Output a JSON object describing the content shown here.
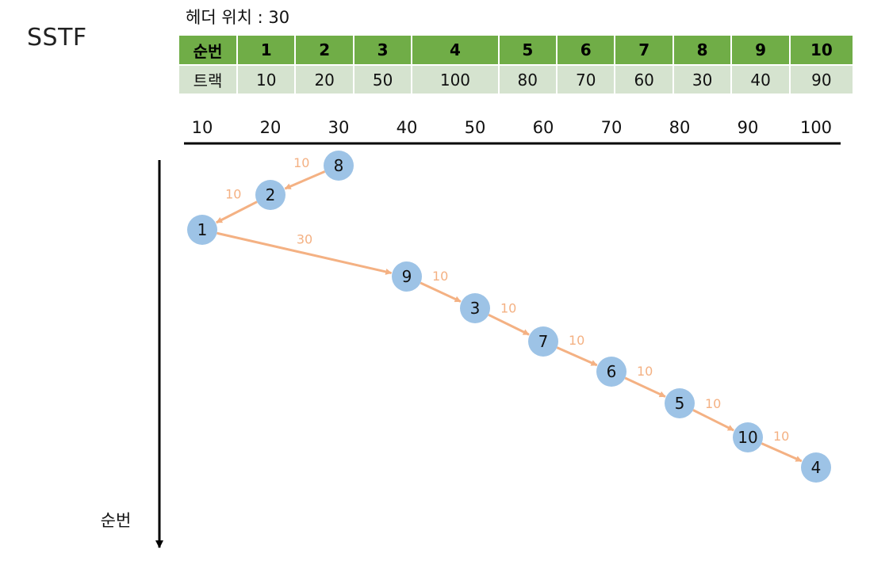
{
  "title": "SSTF",
  "header_position_label": "헤더 위치 : 30",
  "table": {
    "order_header": "순번",
    "track_header": "트랙",
    "orders": [
      "1",
      "2",
      "3",
      "4",
      "5",
      "6",
      "7",
      "8",
      "9",
      "10"
    ],
    "tracks": [
      "10",
      "20",
      "50",
      "100",
      "80",
      "70",
      "60",
      "30",
      "40",
      "90"
    ]
  },
  "track_axis": {
    "ticks": [
      "10",
      "20",
      "30",
      "40",
      "50",
      "60",
      "70",
      "80",
      "90",
      "100"
    ]
  },
  "order_axis_label": "순번",
  "visit_sequence": [
    {
      "request": "8",
      "track": 30,
      "step": 0
    },
    {
      "request": "2",
      "track": 20,
      "step": 1
    },
    {
      "request": "1",
      "track": 10,
      "step": 2
    },
    {
      "request": "9",
      "track": 40,
      "step": 3
    },
    {
      "request": "3",
      "track": 50,
      "step": 4
    },
    {
      "request": "7",
      "track": 60,
      "step": 5
    },
    {
      "request": "6",
      "track": 70,
      "step": 6
    },
    {
      "request": "5",
      "track": 80,
      "step": 7
    },
    {
      "request": "10",
      "track": 90,
      "step": 8
    },
    {
      "request": "4",
      "track": 100,
      "step": 9
    }
  ],
  "move_distances": [
    "10",
    "10",
    "30",
    "10",
    "10",
    "10",
    "10",
    "10",
    "10"
  ],
  "colors": {
    "node_fill": "#9dc3e6",
    "arrow": "#f4b183",
    "distance_label": "#f4b183",
    "table_header_bg": "#70ad47",
    "table_row_bg": "#d5e3cf",
    "axis": "#000000"
  }
}
